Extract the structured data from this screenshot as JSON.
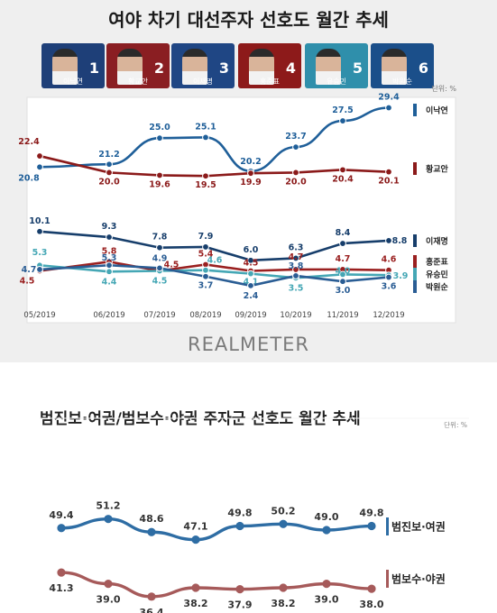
{
  "chart_data": [
    {
      "type": "line",
      "title": "여야 차기 대선주자 선호도 월간 추세",
      "unit": "단위: %",
      "brand": "REALMETER",
      "candidates": [
        {
          "num": "1",
          "name": "이낙연",
          "color": "#1f4e79"
        },
        {
          "num": "2",
          "name": "황교안",
          "color": "#7b1618"
        },
        {
          "num": "3",
          "name": "이재명",
          "color": "#1d3f6e"
        },
        {
          "num": "4",
          "name": "홍준표",
          "color": "#7a1010"
        },
        {
          "num": "5",
          "name": "유승민",
          "color": "#3b8ba0"
        },
        {
          "num": "6",
          "name": "박원순",
          "color": "#1a4c7c"
        }
      ],
      "categories": [
        "05/2019",
        "06/2019",
        "07/2019",
        "08/2019",
        "09/2019",
        "10/2019",
        "11/2019",
        "12/2019"
      ],
      "series": [
        {
          "name": "이낙연",
          "color": "#1f5f99",
          "values": [
            20.8,
            21.2,
            25.0,
            25.1,
            20.2,
            23.7,
            27.5,
            29.4
          ]
        },
        {
          "name": "황교안",
          "color": "#8b1a1a",
          "values": [
            22.4,
            20.0,
            19.6,
            19.5,
            19.9,
            20.0,
            20.4,
            20.1
          ]
        },
        {
          "name": "이재명",
          "color": "#173e6b",
          "values": [
            10.1,
            9.3,
            7.8,
            7.9,
            6.0,
            6.3,
            8.4,
            8.8
          ]
        },
        {
          "name": "홍준표",
          "color": "#9a2020",
          "values": [
            4.5,
            5.8,
            4.5,
            5.4,
            4.5,
            4.7,
            4.7,
            4.6
          ]
        },
        {
          "name": "유승민",
          "color": "#45a7b5",
          "values": [
            5.3,
            4.4,
            4.5,
            4.6,
            4.1,
            3.5,
            4.0,
            3.9
          ]
        },
        {
          "name": "박원순",
          "color": "#2a5d94",
          "values": [
            4.7,
            5.3,
            4.9,
            3.7,
            2.4,
            3.8,
            3.0,
            3.6
          ]
        }
      ]
    },
    {
      "type": "line",
      "title": "범진보·여권/범보수·야권 주자군 선호도 월간 추세",
      "unit": "단위: %",
      "categories": [
        "",
        "",
        "",
        "",
        "",
        "",
        "",
        ""
      ],
      "series": [
        {
          "name": "범진보·여권",
          "color": "#2e6da4",
          "values": [
            49.4,
            51.2,
            48.6,
            47.1,
            49.8,
            50.2,
            49.0,
            49.8
          ]
        },
        {
          "name": "범보수·야권",
          "color": "#a65a5a",
          "values": [
            41.3,
            39.0,
            36.4,
            38.2,
            37.9,
            38.2,
            39.0,
            38.0
          ]
        }
      ]
    }
  ]
}
